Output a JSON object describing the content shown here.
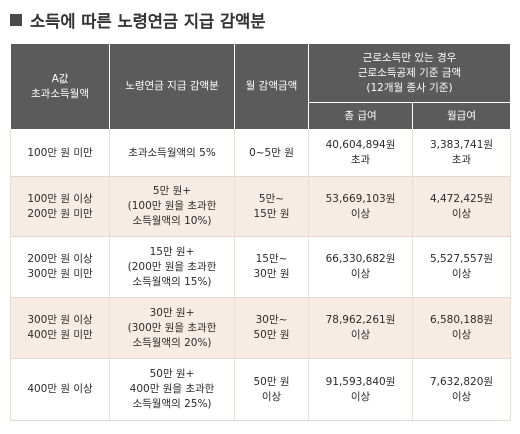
{
  "title": "소득에 따른 노령연금 지급 감액분",
  "headers": {
    "col1": "A값\n초과소득월액",
    "col2": "노령연금 지급 감액분",
    "col3": "월 감액금액",
    "group": "근로소득만 있는 경우\n근로소득공제 기준 금액\n(12개월 종사 기준)",
    "sub1": "총 급여",
    "sub2": "월급여"
  },
  "rows": [
    {
      "income": "100만 원 미만",
      "reduction": "초과소득월액의 5%",
      "amount": "0~5만 원",
      "total": "40,604,894원\n초과",
      "monthly": "3,383,741원\n초과"
    },
    {
      "income": "100만 원 이상\n200만 원 미만",
      "reduction": "5만 원+\n(100만 원을 초과한\n소득월액의 10%)",
      "amount": "5만~\n15만 원",
      "total": "53,669,103원\n이상",
      "monthly": "4,472,425원\n이상"
    },
    {
      "income": "200만 원 이상\n300만 원 미만",
      "reduction": "15만 원+\n(200만 원을 초과한\n소득월액의 15%)",
      "amount": "15만~\n30만 원",
      "total": "66,330,682원\n이상",
      "monthly": "5,527,557원\n이상"
    },
    {
      "income": "300만 원 이상\n400만 원 미만",
      "reduction": "30만 원+\n(300만 원을 초과한\n소득월액의 20%)",
      "amount": "30만~\n50만 원",
      "total": "78,962,261원\n이상",
      "monthly": "6,580,188원\n이상"
    },
    {
      "income": "400만 원 이상",
      "reduction": "50만 원+\n400만 원을 초과한\n소득월액의 25%)",
      "amount": "50만 원\n이상",
      "total": "91,593,840원\n이상",
      "monthly": "7,632,820원\n이상"
    }
  ]
}
